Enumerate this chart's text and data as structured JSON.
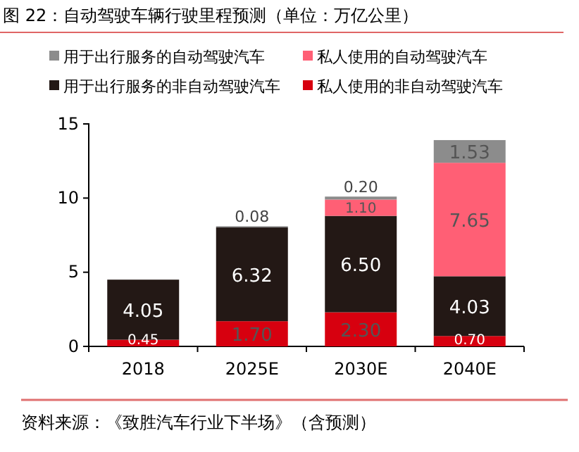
{
  "chart_data": {
    "type": "bar",
    "stacked": true,
    "title": "图 22：自动驾驶车辆行驶里程预测（单位：万亿公里）",
    "categories": [
      "2018",
      "2025E",
      "2030E",
      "2040E"
    ],
    "series": [
      {
        "name": "私人使用的非自动驾驶汽车",
        "color": "#d7000f",
        "values": [
          0.45,
          1.7,
          2.3,
          0.7
        ],
        "value_labels": [
          "0.45",
          "1.70",
          "2.30",
          "0.70"
        ]
      },
      {
        "name": "用于出行服务的非自动驾驶汽车",
        "color": "#231815",
        "values": [
          4.05,
          6.32,
          6.5,
          4.03
        ],
        "value_labels": [
          "4.05",
          "6.32",
          "6.50",
          "4.03"
        ]
      },
      {
        "name": "私人使用的自动驾驶汽车",
        "color": "#ff5f75",
        "values": [
          null,
          null,
          1.1,
          7.65
        ],
        "value_labels": [
          null,
          null,
          "1.10",
          "7.65"
        ]
      },
      {
        "name": "用于出行服务的自动驾驶汽车",
        "color": "#8c8c8c",
        "values": [
          null,
          0.08,
          0.2,
          1.53
        ],
        "value_labels": [
          null,
          "0.08",
          "0.20",
          "1.53"
        ]
      }
    ],
    "ylim": [
      0,
      15
    ],
    "yticks": [
      0,
      5,
      10,
      15
    ],
    "grid": false,
    "legend": "top",
    "annotations": [
      "资料来源：《致胜汽车行业下半场》（含预测）"
    ]
  }
}
